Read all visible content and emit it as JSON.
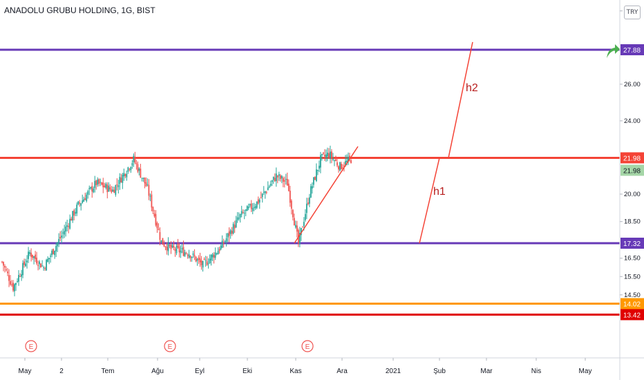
{
  "header": {
    "title": "ANADOLU GRUBU HOLDING, 1G, BIST",
    "currency": "TRY"
  },
  "chart_data": {
    "type": "candlestick",
    "title": "ANADOLU GRUBU HOLDING, 1G, BIST",
    "ylim": [
      12.8,
      30.6
    ],
    "y_ticks": [
      "30.00",
      "26.00",
      "24.00",
      "20.00",
      "18.50",
      "16.50",
      "15.50",
      "14.50"
    ],
    "x_ticks": [
      "May",
      "2",
      "Tem",
      "Ağu",
      "Eyl",
      "Eki",
      "Kas",
      "Ara",
      "2021",
      "Şub",
      "Mar",
      "Nis",
      "May"
    ],
    "candles_summary": {
      "first": "2020-05-01",
      "last": "2020-12-09",
      "keypoints": [
        [
          0,
          16.3
        ],
        [
          8,
          14.9
        ],
        [
          20,
          16.8
        ],
        [
          30,
          16.0
        ],
        [
          42,
          17.6
        ],
        [
          55,
          19.4
        ],
        [
          68,
          20.6
        ],
        [
          80,
          20.2
        ],
        [
          95,
          21.9
        ],
        [
          105,
          20.3
        ],
        [
          115,
          17.4
        ],
        [
          122,
          17.0
        ],
        [
          135,
          16.8
        ],
        [
          145,
          16.1
        ],
        [
          158,
          17.1
        ],
        [
          172,
          18.8
        ],
        [
          185,
          19.6
        ],
        [
          198,
          21.0
        ],
        [
          206,
          20.6
        ],
        [
          214,
          17.3
        ],
        [
          222,
          20.0
        ],
        [
          230,
          21.9
        ],
        [
          236,
          22.2
        ],
        [
          244,
          21.5
        ],
        [
          252,
          21.9
        ]
      ]
    },
    "horizontal_levels": [
      {
        "value": 27.88,
        "label": "27.88",
        "color": "#673ab7"
      },
      {
        "value": 21.98,
        "label": "21.98",
        "color": "#f44336"
      },
      {
        "value": 17.32,
        "label": "17.32",
        "color": "#673ab7"
      },
      {
        "value": 14.02,
        "label": "14.02",
        "color": "#ff9800"
      },
      {
        "value": 13.42,
        "label": "13.42",
        "color": "#e00000"
      }
    ],
    "current_price": {
      "value": 21.98,
      "label": "21.98",
      "color": "#a5d6a7"
    },
    "annotations": [
      {
        "text": "h1"
      },
      {
        "text": "h2"
      }
    ],
    "earnings_markers": [
      "E",
      "E",
      "E"
    ],
    "colors": {
      "up": "#26a69a",
      "down": "#ef5350"
    }
  }
}
